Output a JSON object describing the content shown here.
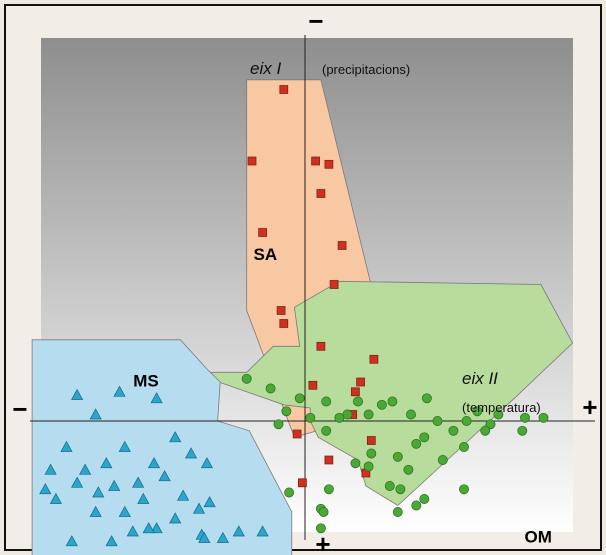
{
  "chart_data": {
    "type": "scatter",
    "xlim": [
      -100,
      100
    ],
    "ylim": [
      -100,
      100
    ],
    "y_inverted": true,
    "grid": false,
    "axis_labels": {
      "y_title": "eix I",
      "y_subtitle": "(precipitacions)",
      "x_title": "eix II",
      "x_subtitle": "(temperatura)",
      "y_neg_sign": "−",
      "y_pos_sign": "+",
      "x_neg_sign": "−",
      "x_pos_sign": "+"
    },
    "colors": {
      "background_top": "#8e8e8e",
      "background_bottom": "#ffffff",
      "frame": "#111111"
    },
    "series": [
      {
        "name": "SA",
        "marker": "square",
        "color": "#d0301f",
        "hull_color": "#f8c8a3",
        "hull": [
          [
            -22,
            -105
          ],
          [
            6,
            -105
          ],
          [
            30,
            -25
          ],
          [
            30,
            -14
          ],
          [
            26,
            -2
          ],
          [
            -4,
            5
          ],
          [
            -22,
            -34
          ]
        ],
        "points": [
          [
            -8,
            -102
          ],
          [
            -20,
            -80
          ],
          [
            4,
            -80
          ],
          [
            9,
            -79
          ],
          [
            6,
            -70
          ],
          [
            -16,
            -58
          ],
          [
            14,
            -54
          ],
          [
            11,
            -42
          ],
          [
            -9,
            -34
          ],
          [
            -8,
            -30
          ],
          [
            6,
            -23
          ],
          [
            26,
            -19
          ],
          [
            21,
            -12
          ],
          [
            3,
            -11
          ],
          [
            19,
            -9
          ],
          [
            18,
            -2
          ],
          [
            -3,
            4
          ],
          [
            25,
            6
          ],
          [
            9,
            12
          ],
          [
            23,
            16
          ],
          [
            -1,
            19
          ]
        ]
      },
      {
        "name": "OM",
        "marker": "circle",
        "color": "#4aa834",
        "hull_color": "#b7dc9c",
        "hull": [
          [
            -8,
            -5
          ],
          [
            2,
            -4
          ],
          [
            2,
            0
          ],
          [
            5,
            5
          ],
          [
            20,
            12
          ],
          [
            23,
            20
          ],
          [
            35,
            26
          ],
          [
            79,
            -7
          ],
          [
            101,
            -24
          ],
          [
            89,
            -42
          ],
          [
            13,
            -43
          ],
          [
            -4,
            -35
          ],
          [
            -2,
            -23
          ],
          [
            -12,
            -23
          ],
          [
            -22,
            -15
          ],
          [
            -43,
            -15
          ]
        ],
        "points": [
          [
            -7,
            -3
          ],
          [
            -10,
            1
          ],
          [
            8,
            3
          ],
          [
            25,
            10
          ],
          [
            19,
            13
          ],
          [
            24,
            14
          ],
          [
            39,
            15
          ],
          [
            32,
            20
          ],
          [
            36,
            21
          ],
          [
            9,
            21
          ],
          [
            60,
            21
          ],
          [
            -6,
            22
          ],
          [
            45,
            24
          ],
          [
            42,
            26
          ],
          [
            6,
            27
          ],
          [
            35,
            28
          ],
          [
            7,
            28
          ],
          [
            6,
            33
          ],
          [
            -22,
            -13
          ],
          [
            -13,
            -10
          ],
          [
            -2,
            -7
          ],
          [
            8,
            -6
          ],
          [
            20,
            -6
          ],
          [
            33,
            -6
          ],
          [
            46,
            -7
          ],
          [
            29,
            -5
          ],
          [
            40,
            -2
          ],
          [
            16,
            -2
          ],
          [
            13,
            -1
          ],
          [
            2,
            -1
          ],
          [
            65,
            -3
          ],
          [
            73,
            -2
          ],
          [
            90,
            -1
          ],
          [
            83,
            -1
          ],
          [
            70,
            1
          ],
          [
            82,
            3
          ],
          [
            56,
            3
          ],
          [
            42,
            7
          ],
          [
            50,
            0
          ],
          [
            61,
            0
          ],
          [
            68,
            3
          ],
          [
            60,
            8
          ],
          [
            45,
            5
          ],
          [
            35,
            11
          ],
          [
            52,
            12
          ],
          [
            24,
            -2
          ]
        ]
      },
      {
        "name": "MS",
        "marker": "triangle",
        "color": "#2aa5cc",
        "hull_color": "#b6dcf0",
        "hull": [
          [
            -103,
            -25
          ],
          [
            -47,
            -25
          ],
          [
            -37,
            -16
          ],
          [
            -32,
            -12
          ],
          [
            -33,
            0
          ],
          [
            -21,
            3
          ],
          [
            -5,
            28
          ],
          [
            -5,
            42
          ],
          [
            -103,
            42
          ]
        ],
        "points": [
          [
            -86,
            -8
          ],
          [
            -70,
            -9
          ],
          [
            -56,
            -7
          ],
          [
            -79,
            -2
          ],
          [
            -90,
            8
          ],
          [
            -68,
            8
          ],
          [
            -49,
            5
          ],
          [
            -43,
            10
          ],
          [
            -37,
            13
          ],
          [
            -75,
            13
          ],
          [
            -57,
            13
          ],
          [
            -96,
            15
          ],
          [
            -83,
            15
          ],
          [
            -53,
            17
          ],
          [
            -86,
            19
          ],
          [
            -72,
            20
          ],
          [
            -63,
            19
          ],
          [
            -78,
            22
          ],
          [
            -98,
            21
          ],
          [
            -61,
            24
          ],
          [
            -94,
            24
          ],
          [
            -40,
            27
          ],
          [
            -68,
            28
          ],
          [
            -79,
            28
          ],
          [
            -49,
            30
          ],
          [
            -56,
            33
          ],
          [
            -25,
            34
          ],
          [
            -39,
            35
          ],
          [
            -88,
            37
          ],
          [
            -73,
            37
          ],
          [
            -38,
            36
          ],
          [
            -31,
            36
          ],
          [
            -16,
            34
          ],
          [
            -65,
            34
          ],
          [
            -46,
            23
          ],
          [
            -36,
            25
          ],
          [
            -59,
            33
          ]
        ]
      }
    ],
    "annotations": [
      {
        "text": "SA",
        "x": -15,
        "y": -51
      },
      {
        "text": "MS",
        "x": -60,
        "y": -12
      },
      {
        "text": "OM",
        "x": 88,
        "y": 36
      }
    ]
  }
}
